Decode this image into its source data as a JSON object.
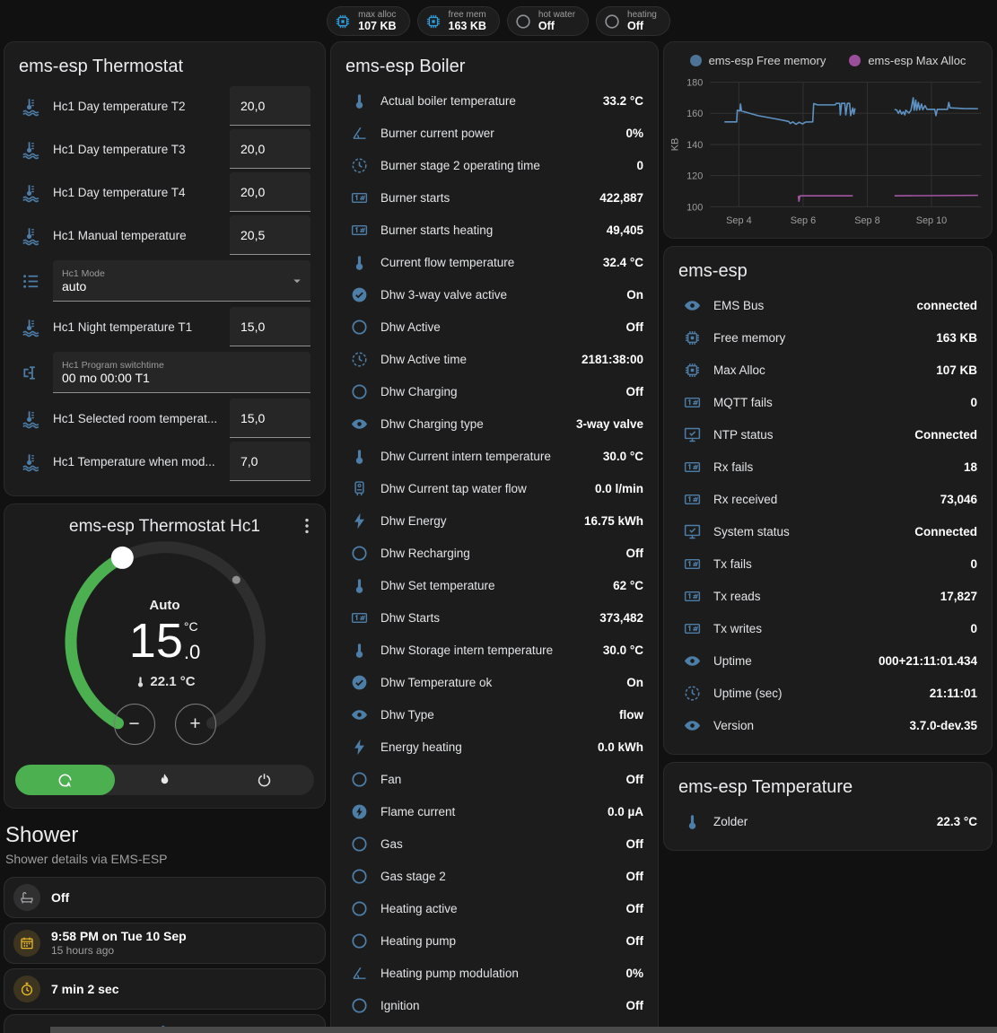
{
  "header_badges": [
    {
      "icon": "chip",
      "icon_color": "#2d9bd9",
      "label": "max alloc",
      "value": "107 KB"
    },
    {
      "icon": "chip",
      "icon_color": "#2d9bd9",
      "label": "free mem",
      "value": "163 KB"
    },
    {
      "icon": "circle-outline",
      "icon_color": "#8f9193",
      "label": "hot water",
      "value": "Off"
    },
    {
      "icon": "circle-outline",
      "icon_color": "#8f9193",
      "label": "heating",
      "value": "Off"
    }
  ],
  "thermostat_card": {
    "title": "ems-esp Thermostat",
    "rows": [
      {
        "type": "number",
        "icon": "thermometer-water",
        "label": "Hc1 Day temperature T2",
        "value": "20,0"
      },
      {
        "type": "number",
        "icon": "thermometer-water",
        "label": "Hc1 Day temperature T3",
        "value": "20,0"
      },
      {
        "type": "number",
        "icon": "thermometer-water",
        "label": "Hc1 Day temperature T4",
        "value": "20,0"
      },
      {
        "type": "number",
        "icon": "thermometer-water",
        "label": "Hc1 Manual temperature",
        "value": "20,5"
      },
      {
        "type": "select",
        "icon": "list",
        "label": "Hc1 Mode",
        "value": "auto"
      },
      {
        "type": "number",
        "icon": "thermometer-water",
        "label": "Hc1 Night temperature T1",
        "value": "15,0"
      },
      {
        "type": "text",
        "icon": "valve",
        "label": "Hc1 Program switchtime",
        "value": "00 mo 00:00 T1"
      },
      {
        "type": "number",
        "icon": "thermometer-water",
        "label": "Hc1 Selected room temperat...",
        "value": "15,0"
      },
      {
        "type": "number",
        "icon": "thermometer-water",
        "label": "Hc1 Temperature when mod...",
        "value": "7,0"
      }
    ]
  },
  "dial_card": {
    "title": "ems-esp Thermostat Hc1",
    "hvac_label": "Auto",
    "target_whole": "15",
    "target_decimal": ".0",
    "unit": "°C",
    "current_temp": "22.1 °C",
    "minus_label": "−",
    "plus_label": "+",
    "accent": "#4caf50",
    "modes": [
      {
        "icon": "auto-mode",
        "active": true
      },
      {
        "icon": "flame",
        "active": false
      },
      {
        "icon": "power",
        "active": false
      }
    ]
  },
  "shower_section": {
    "title": "Shower",
    "subtitle": "Shower details via EMS-ESP",
    "items": [
      {
        "icon": "bath",
        "tone": "gray",
        "title": "Off",
        "subtitle": ""
      },
      {
        "icon": "calendar",
        "tone": "amber",
        "title": "9:58 PM on Tue 10 Sep",
        "subtitle": "15 hours ago"
      },
      {
        "icon": "timer",
        "tone": "amber",
        "title": "7 min 2 sec",
        "subtitle": ""
      },
      {
        "icon": "snowflake-alert",
        "tone": "blue",
        "title": "",
        "subtitle": "",
        "partial": true
      }
    ]
  },
  "boiler_card": {
    "title": "ems-esp Boiler",
    "rows": [
      {
        "icon": "thermometer",
        "label": "Actual boiler temperature",
        "value": "33.2 °C"
      },
      {
        "icon": "angle",
        "label": "Burner current power",
        "value": "0%"
      },
      {
        "icon": "clock",
        "label": "Burner stage 2 operating time",
        "value": "0"
      },
      {
        "icon": "counter",
        "label": "Burner starts",
        "value": "422,887"
      },
      {
        "icon": "counter",
        "label": "Burner starts heating",
        "value": "49,405"
      },
      {
        "icon": "thermometer",
        "label": "Current flow temperature",
        "value": "32.4 °C"
      },
      {
        "icon": "check-circle",
        "label": "Dhw 3-way valve active",
        "value": "On"
      },
      {
        "icon": "circle-outline",
        "label": "Dhw Active",
        "value": "Off"
      },
      {
        "icon": "clock",
        "label": "Dhw Active time",
        "value": "2181:38:00"
      },
      {
        "icon": "circle-outline",
        "label": "Dhw Charging",
        "value": "Off"
      },
      {
        "icon": "eye",
        "label": "Dhw Charging type",
        "value": "3-way valve"
      },
      {
        "icon": "thermometer",
        "label": "Dhw Current intern temperature",
        "value": "30.0 °C"
      },
      {
        "icon": "water-heater",
        "label": "Dhw Current tap water flow",
        "value": "0.0 l/min"
      },
      {
        "icon": "flash",
        "label": "Dhw Energy",
        "value": "16.75 kWh"
      },
      {
        "icon": "circle-outline",
        "label": "Dhw Recharging",
        "value": "Off"
      },
      {
        "icon": "thermometer",
        "label": "Dhw Set temperature",
        "value": "62 °C"
      },
      {
        "icon": "counter",
        "label": "Dhw Starts",
        "value": "373,482"
      },
      {
        "icon": "thermometer",
        "label": "Dhw Storage intern temperature",
        "value": "30.0 °C"
      },
      {
        "icon": "check-circle",
        "label": "Dhw Temperature ok",
        "value": "On"
      },
      {
        "icon": "eye",
        "label": "Dhw Type",
        "value": "flow"
      },
      {
        "icon": "flash",
        "label": "Energy heating",
        "value": "0.0 kWh"
      },
      {
        "icon": "circle-outline",
        "label": "Fan",
        "value": "Off"
      },
      {
        "icon": "flash-circle",
        "label": "Flame current",
        "value": "0.0 µA"
      },
      {
        "icon": "circle-outline",
        "label": "Gas",
        "value": "Off"
      },
      {
        "icon": "circle-outline",
        "label": "Gas stage 2",
        "value": "Off"
      },
      {
        "icon": "circle-outline",
        "label": "Heating active",
        "value": "Off"
      },
      {
        "icon": "circle-outline",
        "label": "Heating pump",
        "value": "Off"
      },
      {
        "icon": "angle",
        "label": "Heating pump modulation",
        "value": "0%"
      },
      {
        "icon": "circle-outline",
        "label": "Ignition",
        "value": "Off"
      }
    ]
  },
  "device_card": {
    "title": "ems-esp",
    "rows": [
      {
        "icon": "eye",
        "label": "EMS Bus",
        "value": "connected"
      },
      {
        "icon": "chip",
        "label": "Free memory",
        "value": "163 KB"
      },
      {
        "icon": "chip",
        "label": "Max Alloc",
        "value": "107 KB"
      },
      {
        "icon": "counter",
        "label": "MQTT fails",
        "value": "0"
      },
      {
        "icon": "monitor-check",
        "label": "NTP status",
        "value": "Connected"
      },
      {
        "icon": "counter",
        "label": "Rx fails",
        "value": "18"
      },
      {
        "icon": "counter",
        "label": "Rx received",
        "value": "73,046"
      },
      {
        "icon": "monitor-check",
        "label": "System status",
        "value": "Connected"
      },
      {
        "icon": "counter",
        "label": "Tx fails",
        "value": "0"
      },
      {
        "icon": "counter",
        "label": "Tx reads",
        "value": "17,827"
      },
      {
        "icon": "counter",
        "label": "Tx writes",
        "value": "0"
      },
      {
        "icon": "eye",
        "label": "Uptime",
        "value": "000+21:11:01.434"
      },
      {
        "icon": "clock",
        "label": "Uptime (sec)",
        "value": "21:11:01"
      },
      {
        "icon": "eye",
        "label": "Version",
        "value": "3.7.0-dev.35"
      }
    ]
  },
  "temperature_card": {
    "title": "ems-esp Temperature",
    "rows": [
      {
        "icon": "thermometer",
        "label": "Zolder",
        "value": "22.3 °C"
      }
    ]
  },
  "chart_data": {
    "type": "line",
    "title": "",
    "xlabel": "",
    "ylabel": "KB",
    "grid": true,
    "legend_position": "top",
    "ylim": [
      95,
      185
    ],
    "yticks": [
      100,
      120,
      140,
      160,
      180
    ],
    "xlim_days": [
      3.1,
      11.55
    ],
    "xticks": [
      {
        "day": 4,
        "label": "Sep 4"
      },
      {
        "day": 6,
        "label": "Sep 6"
      },
      {
        "day": 8,
        "label": "Sep 8"
      },
      {
        "day": 10,
        "label": "Sep 10"
      }
    ],
    "series": [
      {
        "name": "ems-esp Free memory",
        "color": "#5e92c2",
        "dot_color": "#4d7396",
        "segments": [
          [
            [
              3.55,
              154.5
            ],
            [
              3.93,
              154.5
            ],
            [
              3.95,
              162
            ],
            [
              4.03,
              161.5
            ],
            [
              4.05,
              166
            ],
            [
              4.08,
              161.5
            ],
            [
              4.25,
              160.5
            ],
            [
              4.6,
              158.5
            ],
            [
              5.0,
              157
            ],
            [
              5.3,
              155.8
            ],
            [
              5.55,
              154.8
            ],
            [
              5.6,
              153.5
            ],
            [
              5.68,
              154.5
            ],
            [
              5.78,
              153
            ],
            [
              5.88,
              154.3
            ],
            [
              5.98,
              153.2
            ],
            [
              6.08,
              154.4
            ],
            [
              6.3,
              154.5
            ],
            [
              6.33,
              166.3
            ],
            [
              6.45,
              165.4
            ],
            [
              7.0,
              165.4
            ],
            [
              7.03,
              166.4
            ],
            [
              7.14,
              166.4
            ],
            [
              7.16,
              159
            ],
            [
              7.2,
              166.4
            ],
            [
              7.3,
              166.4
            ],
            [
              7.33,
              159
            ],
            [
              7.38,
              166.4
            ],
            [
              7.45,
              166.4
            ],
            [
              7.48,
              158.5
            ],
            [
              7.55,
              163.5
            ],
            [
              7.58,
              159.5
            ],
            [
              7.62,
              163.2
            ]
          ],
          [
            [
              8.85,
              162.5
            ],
            [
              8.92,
              162
            ],
            [
              8.97,
              160
            ],
            [
              9.02,
              162
            ],
            [
              9.07,
              159.5
            ],
            [
              9.12,
              161
            ],
            [
              9.17,
              159
            ],
            [
              9.2,
              162
            ],
            [
              9.3,
              160.2
            ],
            [
              9.36,
              162
            ],
            [
              9.43,
              170
            ],
            [
              9.46,
              162
            ],
            [
              9.51,
              168.5
            ],
            [
              9.54,
              162
            ],
            [
              9.59,
              167
            ],
            [
              9.63,
              162.3
            ],
            [
              9.69,
              166
            ],
            [
              9.73,
              162.3
            ],
            [
              9.8,
              165
            ],
            [
              9.86,
              162.6
            ],
            [
              10.1,
              162.6
            ],
            [
              10.14,
              158.5
            ],
            [
              10.18,
              162.6
            ],
            [
              10.5,
              162.6
            ],
            [
              10.54,
              167
            ],
            [
              10.58,
              163.5
            ],
            [
              11.0,
              163.1
            ],
            [
              11.45,
              163
            ]
          ]
        ]
      },
      {
        "name": "ems-esp Max Alloc",
        "color": "#a455a4",
        "dot_color": "#9b4f9b",
        "segments": [
          [
            [
              5.85,
              107
            ],
            [
              5.87,
              103.5
            ],
            [
              5.9,
              107
            ],
            [
              7.55,
              107
            ]
          ],
          [
            [
              8.85,
              107
            ],
            [
              11.45,
              107.3
            ]
          ]
        ]
      }
    ]
  }
}
